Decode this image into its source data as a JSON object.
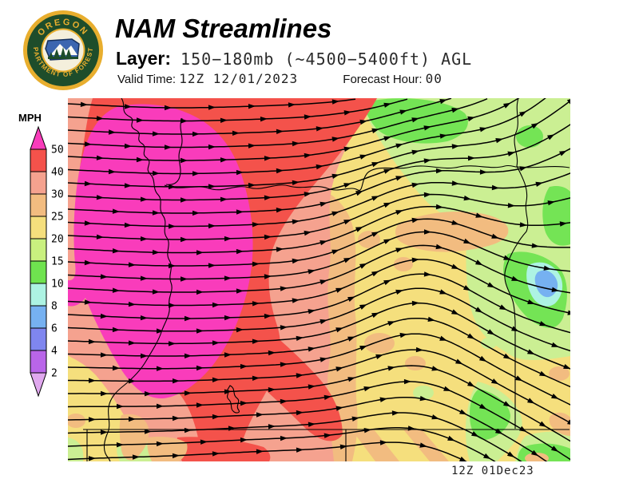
{
  "header": {
    "title": "NAM Streamlines",
    "layer_label": "Layer:",
    "layer_value": "150−180mb (~4500−5400ft) AGL",
    "valid_time_label": "Valid Time:",
    "valid_time_value": "12Z 12/01/2023",
    "forecast_hour_label": "Forecast Hour:",
    "forecast_hour_value": "00"
  },
  "logo": {
    "ring_text_top": "OREGON",
    "ring_text_bottom": "DEPARTMENT OF FORESTRY",
    "ring_color": "#1E4D2B",
    "gold_color": "#E8AE2E",
    "inner_sky_color": "#3C66B0",
    "tree_color": "#1E4D2B"
  },
  "legend": {
    "units": "MPH",
    "ticks": [
      "50",
      "40",
      "30",
      "25",
      "20",
      "15",
      "10",
      "8",
      "6",
      "4",
      "2"
    ],
    "segment_colors": [
      "#F4524B",
      "#F5A28F",
      "#F2BC80",
      "#F5DF7D",
      "#C9F07F",
      "#6FE34F",
      "#ADF3E3",
      "#76B1F1",
      "#7F86EF",
      "#B965E9"
    ],
    "above_max_color": "#F93CBB",
    "below_min_color": "#E0A8EE"
  },
  "map": {
    "timestamp": "12Z 01Dec23",
    "palette": {
      "magenta": "#F93CBB",
      "red": "#F4524B",
      "salmon": "#F5A28F",
      "orange": "#F2BC80",
      "yellow": "#F5DF7D",
      "lightgreen": "#CBEF93",
      "green": "#74E455",
      "cyan": "#ADF3E3",
      "blue": "#76B1F1",
      "line": "#000000"
    },
    "features": [
      "oregon-coastline",
      "columbia-river",
      "willamette-river",
      "snake-river-idaho-border",
      "42nd-parallel-south-border",
      "california-border-meridian",
      "upper-klamath-lake"
    ],
    "regions": [
      {
        "area": "northwest-interior-band",
        "wind_mph": "50+"
      },
      {
        "area": "west-and-north",
        "wind_mph": "40-50"
      },
      {
        "area": "west-central",
        "wind_mph": "30-40"
      },
      {
        "area": "central-transition",
        "wind_mph": "25-30"
      },
      {
        "area": "east-and-southeast",
        "wind_mph": "20-25"
      },
      {
        "area": "northeast",
        "wind_mph": "15-20"
      },
      {
        "area": "far-east-pockets",
        "wind_mph": "10-15"
      },
      {
        "area": "east-border-pocket",
        "wind_mph": "6-10"
      }
    ]
  }
}
